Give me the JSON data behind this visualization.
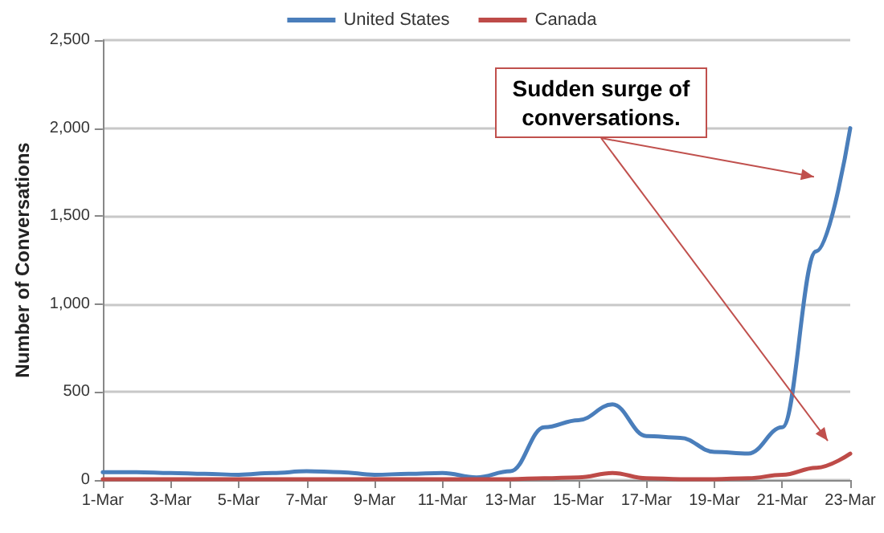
{
  "chart_data": {
    "type": "line",
    "ylabel": "Number of Conversations",
    "categories": [
      "1-Mar",
      null,
      "3-Mar",
      null,
      "5-Mar",
      null,
      "7-Mar",
      null,
      "9-Mar",
      null,
      "11-Mar",
      null,
      "13-Mar",
      null,
      "15-Mar",
      null,
      "17-Mar",
      null,
      "19-Mar",
      null,
      "21-Mar",
      null,
      "23-Mar"
    ],
    "series": [
      {
        "name": "United States",
        "color": "#4a7ebb",
        "values": [
          45,
          45,
          40,
          35,
          30,
          40,
          50,
          45,
          30,
          35,
          40,
          15,
          50,
          300,
          340,
          430,
          250,
          240,
          160,
          150,
          300,
          1300,
          2000
        ]
      },
      {
        "name": "Canada",
        "color": "#be4b48",
        "values": [
          5,
          5,
          5,
          5,
          5,
          5,
          5,
          5,
          5,
          5,
          5,
          5,
          5,
          10,
          15,
          40,
          10,
          5,
          5,
          10,
          30,
          70,
          150
        ]
      }
    ],
    "ylim": [
      0,
      2500
    ],
    "yticks": [
      0,
      {
        "value": 500,
        "label": "500"
      },
      {
        "value": 1000,
        "label": "1,000"
      },
      {
        "value": 1500,
        "label": "1,500"
      },
      {
        "value": 2000,
        "label": "2,000"
      },
      {
        "value": 2500,
        "label": "2,500"
      }
    ],
    "grid": "y",
    "legend": "top",
    "marker": "none",
    "line_style": "solid",
    "annotations": [
      "Sudden surge of conversations."
    ]
  }
}
